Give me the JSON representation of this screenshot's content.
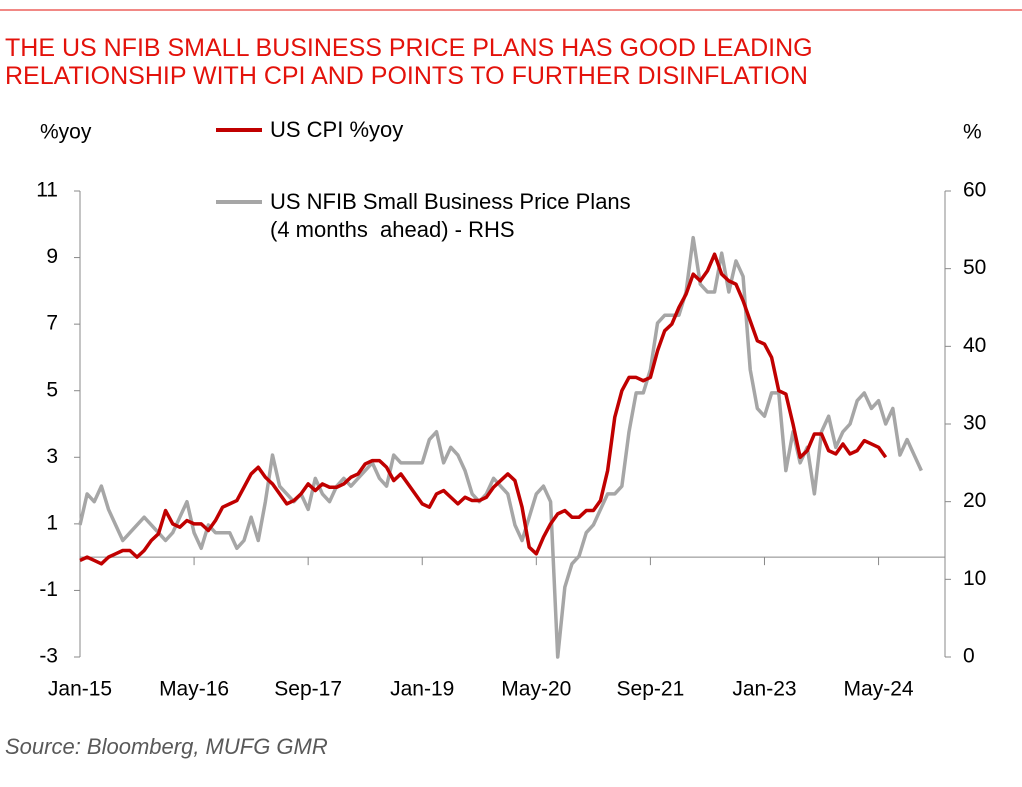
{
  "chart_data": {
    "type": "line",
    "title": [
      "THE US NFIB SMALL BUSINESS PRICE PLANS HAS GOOD LEADING",
      "RELATIONSHIP WITH CPI AND POINTS TO FURTHER DISINFLATION"
    ],
    "ylabel": "%yoy",
    "y2label": "%",
    "source": "Source: Bloomberg, MUFG GMR",
    "categories": [
      "Jan-15",
      null,
      null,
      null,
      null,
      null,
      null,
      null,
      null,
      null,
      null,
      null,
      null,
      null,
      null,
      null,
      "May-16",
      null,
      null,
      null,
      null,
      null,
      null,
      null,
      null,
      null,
      null,
      null,
      null,
      null,
      null,
      null,
      "Sep-17",
      null,
      null,
      null,
      null,
      null,
      null,
      null,
      null,
      null,
      null,
      null,
      null,
      null,
      null,
      null,
      "Jan-19",
      null,
      null,
      null,
      null,
      null,
      null,
      null,
      null,
      null,
      null,
      null,
      null,
      null,
      null,
      null,
      "May-20",
      null,
      null,
      null,
      null,
      null,
      null,
      null,
      null,
      null,
      null,
      null,
      null,
      null,
      null,
      null,
      "Sep-21",
      null,
      null,
      null,
      null,
      null,
      null,
      null,
      null,
      null,
      null,
      null,
      null,
      null,
      null,
      null,
      "Jan-23",
      null,
      null,
      null,
      null,
      null,
      null,
      null,
      null,
      null,
      null,
      null,
      null,
      null,
      null,
      null,
      "May-24",
      null,
      null,
      null,
      null,
      null,
      null
    ],
    "series": [
      {
        "name": "US CPI %yoy",
        "color": "#c00000",
        "axis": "y",
        "values": [
          -0.1,
          0.0,
          -0.1,
          -0.2,
          0.0,
          0.1,
          0.2,
          0.2,
          0.0,
          0.2,
          0.5,
          0.7,
          1.4,
          1.0,
          0.9,
          1.1,
          1.0,
          1.0,
          0.8,
          1.1,
          1.5,
          1.6,
          1.7,
          2.1,
          2.5,
          2.7,
          2.4,
          2.2,
          1.9,
          1.6,
          1.7,
          1.9,
          2.2,
          2.0,
          2.2,
          2.1,
          2.1,
          2.2,
          2.4,
          2.5,
          2.8,
          2.9,
          2.9,
          2.7,
          2.3,
          2.5,
          2.2,
          1.9,
          1.6,
          1.5,
          1.9,
          2.0,
          1.8,
          1.6,
          1.8,
          1.7,
          1.7,
          1.8,
          2.1,
          2.3,
          2.5,
          2.3,
          1.5,
          0.3,
          0.1,
          0.6,
          1.0,
          1.3,
          1.4,
          1.2,
          1.2,
          1.4,
          1.4,
          1.7,
          2.6,
          4.2,
          5.0,
          5.4,
          5.4,
          5.3,
          5.4,
          6.2,
          6.8,
          7.0,
          7.5,
          7.9,
          8.5,
          8.3,
          8.6,
          9.1,
          8.5,
          8.3,
          8.2,
          7.7,
          7.1,
          6.5,
          6.4,
          6.0,
          5.0,
          4.9,
          4.0,
          3.0,
          3.2,
          3.7,
          3.7,
          3.2,
          3.1,
          3.4,
          3.1,
          3.2,
          3.5,
          3.4,
          3.3,
          3.0,
          null,
          null,
          null,
          null,
          null
        ]
      },
      {
        "name": "US NFIB Small Business Price Plans (4 months  ahead) - RHS",
        "color": "#a6a6a6",
        "axis": "y2",
        "values": [
          17,
          21,
          20,
          22,
          19,
          17,
          15,
          16,
          17,
          18,
          17,
          16,
          15,
          16,
          18,
          20,
          16,
          14,
          17,
          16,
          16,
          16,
          14,
          15,
          18,
          15,
          20,
          26,
          22,
          21,
          20,
          21,
          19,
          23,
          21,
          20,
          22,
          23,
          22,
          23,
          24,
          25,
          23,
          22,
          26,
          25,
          25,
          25,
          25,
          28,
          29,
          25,
          27,
          26,
          24,
          21,
          20,
          21,
          23,
          22,
          21,
          17,
          15,
          18,
          21,
          22,
          20,
          0,
          9,
          12,
          13,
          16,
          17,
          19,
          21,
          21,
          22,
          29,
          34,
          34,
          37,
          43,
          44,
          44,
          44,
          47,
          54,
          48,
          47,
          47,
          52,
          47,
          51,
          49,
          37,
          32,
          31,
          34,
          34,
          24,
          29,
          25,
          27,
          21,
          29,
          31,
          27,
          29,
          30,
          33,
          34,
          32,
          33,
          30,
          32,
          26,
          28,
          26,
          24
        ]
      }
    ],
    "ylim": [
      -3,
      11
    ],
    "yticks": [
      -3,
      -1,
      1,
      3,
      5,
      7,
      9,
      11
    ],
    "y2lim": [
      0,
      60
    ],
    "y2ticks": [
      0,
      10,
      20,
      30,
      40,
      50,
      60
    ]
  }
}
